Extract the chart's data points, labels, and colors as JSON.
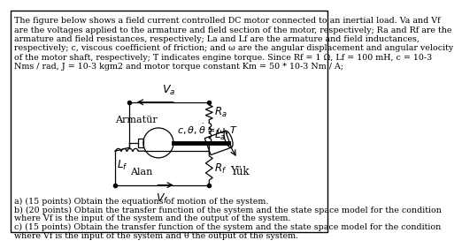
{
  "bg_color": "#ffffff",
  "border_color": "#000000",
  "text_color": "#000000",
  "paragraph_text": "The figure below shows a field current controlled DC motor connected to an inertial load. Va and Vf\nare the voltages applied to the armature and field section of the motor, respectively; Ra and Rf are the\narmature and field resistances, respectively; La and Lf are the armature and field inductances,\nrespectively; c, viscous coefficient of friction; and ω are the angular displacement and angular velocity\nof the motor shaft, respectively; T indicates engine torque. Since Rf = 1 Ω, Lf = 100 mH, c = 10-3\nNms / rad, J = 10-3 kgm2 and motor torque constant Km = 50 * 10-3 Nm / A;",
  "question_a": "a) (15 points) Obtain the equations of motion of the system.",
  "question_b": "b) (20 points) Obtain the transfer function of the system and the state space model for the condition\nwhere Vf is the input of the system and the output of the system.",
  "question_c": "c) (15 points) Obtain the transfer function of the system and the state space model for the condition\nwhere Vf is the input of the system and θ the output of the system.",
  "font_size_text": 6.8,
  "font_size_diagram": 8.0
}
